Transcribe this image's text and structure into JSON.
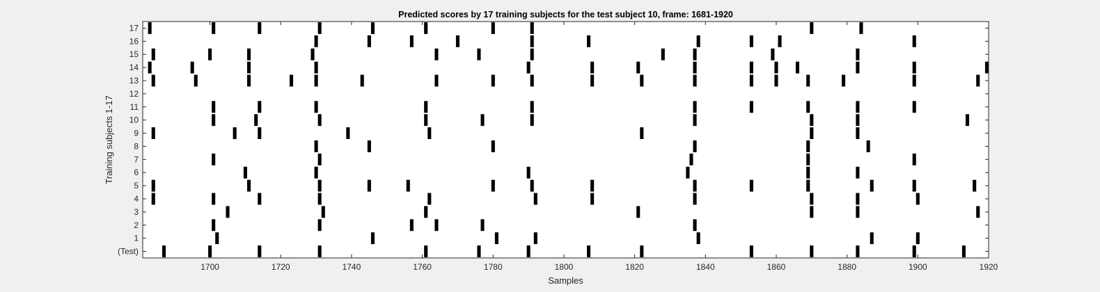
{
  "chart_data": {
    "type": "heatmap",
    "title": "Predicted scores by 17 training subjects for the test subject 10, frame: 1681-1920",
    "xlabel": "Samples",
    "ylabel": "Training subjects 1-17",
    "xlim": [
      1681,
      1920
    ],
    "x_ticks": [
      1700,
      1720,
      1740,
      1760,
      1780,
      1800,
      1820,
      1840,
      1860,
      1880,
      1900,
      1920
    ],
    "y_tick_labels": [
      "(Test)",
      "1",
      "2",
      "3",
      "4",
      "5",
      "6",
      "7",
      "8",
      "9",
      "10",
      "11",
      "12",
      "13",
      "14",
      "15",
      "16",
      "17"
    ],
    "background_color": "#ffffff",
    "mark_color": "#000000",
    "grid": false,
    "rows": [
      {
        "label": "(Test)",
        "positives": [
          1687,
          1700,
          1714,
          1731,
          1761,
          1776,
          1790,
          1807,
          1822,
          1853,
          1870,
          1883,
          1899,
          1913
        ]
      },
      {
        "label": "1",
        "positives": [
          1702,
          1746,
          1781,
          1792,
          1838,
          1887,
          1900
        ]
      },
      {
        "label": "2",
        "positives": [
          1701,
          1731,
          1757,
          1764,
          1777,
          1837
        ]
      },
      {
        "label": "3",
        "positives": [
          1705,
          1732,
          1761,
          1821,
          1870,
          1883,
          1917
        ]
      },
      {
        "label": "4",
        "positives": [
          1684,
          1701,
          1714,
          1731,
          1762,
          1792,
          1808,
          1837,
          1870,
          1883,
          1900
        ]
      },
      {
        "label": "5",
        "positives": [
          1684,
          1711,
          1731,
          1745,
          1756,
          1780,
          1791,
          1808,
          1837,
          1853,
          1869,
          1887,
          1899,
          1916
        ]
      },
      {
        "label": "6",
        "positives": [
          1710,
          1730,
          1790,
          1835,
          1869,
          1883
        ]
      },
      {
        "label": "7",
        "positives": [
          1701,
          1731,
          1836,
          1869,
          1899
        ]
      },
      {
        "label": "8",
        "positives": [
          1730,
          1745,
          1780,
          1837,
          1869,
          1886
        ]
      },
      {
        "label": "9",
        "positives": [
          1684,
          1707,
          1714,
          1739,
          1762,
          1822,
          1870,
          1883
        ]
      },
      {
        "label": "10",
        "positives": [
          1701,
          1713,
          1731,
          1761,
          1777,
          1791,
          1837,
          1870,
          1883,
          1914
        ]
      },
      {
        "label": "11",
        "positives": [
          1701,
          1714,
          1730,
          1761,
          1791,
          1837,
          1853,
          1869,
          1883,
          1899
        ]
      },
      {
        "label": "12",
        "positives": []
      },
      {
        "label": "13",
        "positives": [
          1684,
          1696,
          1711,
          1723,
          1730,
          1743,
          1764,
          1780,
          1791,
          1808,
          1822,
          1837,
          1853,
          1860,
          1869,
          1879,
          1899,
          1917
        ]
      },
      {
        "label": "14",
        "positives": [
          1683,
          1695,
          1711,
          1730,
          1790,
          1808,
          1821,
          1837,
          1853,
          1860,
          1866,
          1883,
          1899,
          1920
        ]
      },
      {
        "label": "15",
        "positives": [
          1684,
          1700,
          1711,
          1729,
          1764,
          1776,
          1791,
          1828,
          1837,
          1859,
          1883
        ]
      },
      {
        "label": "16",
        "positives": [
          1730,
          1745,
          1757,
          1770,
          1791,
          1807,
          1838,
          1853,
          1861,
          1899
        ]
      },
      {
        "label": "17",
        "positives": [
          1683,
          1701,
          1714,
          1731,
          1746,
          1761,
          1780,
          1791,
          1870,
          1884
        ]
      }
    ]
  }
}
